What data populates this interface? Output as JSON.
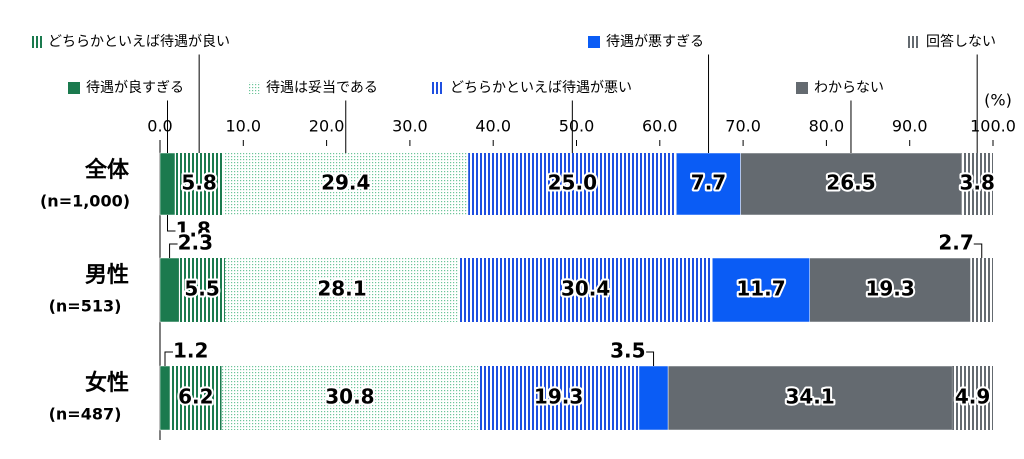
{
  "chart_data": {
    "type": "stacked-bar",
    "orientation": "horizontal",
    "categories": [
      "全体",
      "男性",
      "女性"
    ],
    "sample_sizes": [
      "(n=1,000)",
      "(n=513)",
      "(n=487)"
    ],
    "x_unit": "(%)",
    "xlim": [
      0,
      100
    ],
    "xticks": [
      {
        "value": 0,
        "label": "0.0"
      },
      {
        "value": 10,
        "label": "10.0"
      },
      {
        "value": 20,
        "label": "20.0"
      },
      {
        "value": 30,
        "label": "30.0"
      },
      {
        "value": 40,
        "label": "40.0"
      },
      {
        "value": 50,
        "label": "50.0"
      },
      {
        "value": 60,
        "label": "60.0"
      },
      {
        "value": 70,
        "label": "70.0"
      },
      {
        "value": 80,
        "label": "80.0"
      },
      {
        "value": 90,
        "label": "90.0"
      },
      {
        "value": 100,
        "label": "100.0"
      }
    ],
    "series": [
      {
        "name": "待遇が良すぎる",
        "color": "#1b7a4e",
        "pattern": "solid",
        "values": [
          1.8,
          2.3,
          1.2
        ]
      },
      {
        "name": "どちらかといえば待遇が良い",
        "color": "#1b7a4e",
        "pattern": "stripes",
        "values": [
          5.8,
          5.5,
          6.2
        ]
      },
      {
        "name": "待遇は妥当である",
        "color": "#6cc59a",
        "pattern": "dots",
        "values": [
          29.4,
          28.1,
          30.8
        ]
      },
      {
        "name": "どちらかといえば待遇が悪い",
        "color": "#1f4fe0",
        "pattern": "stripes",
        "values": [
          25.0,
          30.4,
          19.3
        ],
        "value_labels": [
          "25.0",
          "30.4",
          "19.3"
        ]
      },
      {
        "name": "待遇が悪すぎる",
        "color": "#0a5cf5",
        "pattern": "solid",
        "values": [
          7.7,
          11.7,
          3.5
        ]
      },
      {
        "name": "わからない",
        "color": "#646a70",
        "pattern": "solid",
        "values": [
          26.5,
          19.3,
          34.1
        ]
      },
      {
        "name": "回答しない",
        "color": "#646a70",
        "pattern": "stripes",
        "values": [
          3.8,
          2.7,
          4.9
        ]
      }
    ]
  }
}
